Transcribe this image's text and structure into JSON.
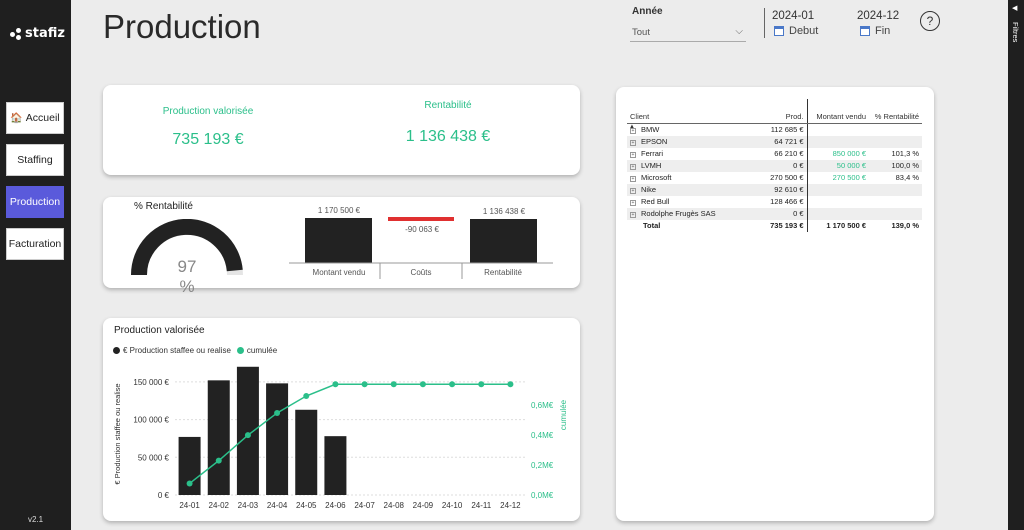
{
  "app": {
    "logo": "stafiz",
    "version": "v2.1",
    "filters_label": "Filtres"
  },
  "nav": [
    {
      "label": "Accueil",
      "icon": "home-icon",
      "active": false
    },
    {
      "label": "Staffing",
      "active": false
    },
    {
      "label": "Production",
      "active": true
    },
    {
      "label": "Facturation",
      "active": false
    }
  ],
  "header": {
    "title": "Production",
    "annee_label": "Année",
    "annee_value": "Tout",
    "start_period": "2024-01",
    "start_label": "Debut",
    "end_period": "2024-12",
    "end_label": "Fin",
    "help": "?"
  },
  "kpis": {
    "prod_label": "Production valorisée",
    "prod_value": "735 193 €",
    "rent_label": "Rentabilité",
    "rent_value": "1 136 438 €"
  },
  "rentabilite": {
    "title": "% Rentabilité",
    "gauge_value": "97 %",
    "gauge_fraction": 0.97,
    "waterfall": [
      {
        "label": "Montant vendu",
        "value_label": "1 170 500 €"
      },
      {
        "label": "Coûts",
        "value_label": "-90 063 €"
      },
      {
        "label": "Rentabilité",
        "value_label": "1 136 438 €"
      }
    ]
  },
  "table": {
    "headers": [
      "Client",
      "Prod.",
      "Montant vendu",
      "% Rentabilité"
    ],
    "rows": [
      {
        "client": "BMW",
        "prod": "112 685 €",
        "vendu": "",
        "rent": ""
      },
      {
        "client": "EPSON",
        "prod": "64 721 €",
        "vendu": "",
        "rent": ""
      },
      {
        "client": "Ferrari",
        "prod": "66 210 €",
        "vendu": "850 000 €",
        "rent": "101,3 %"
      },
      {
        "client": "LVMH",
        "prod": "0 €",
        "vendu": "50 000 €",
        "rent": "100,0 %"
      },
      {
        "client": "Microsoft",
        "prod": "270 500 €",
        "vendu": "270 500 €",
        "rent": "83,4 %"
      },
      {
        "client": "Nike",
        "prod": "92 610 €",
        "vendu": "",
        "rent": ""
      },
      {
        "client": "Red Bull",
        "prod": "128 466 €",
        "vendu": "",
        "rent": ""
      },
      {
        "client": "Rodolphe Frugès SAS",
        "prod": "0 €",
        "vendu": "",
        "rent": ""
      }
    ],
    "total": {
      "client": "Total",
      "prod": "735 193 €",
      "vendu": "1 170 500 €",
      "rent": "139,0 %"
    }
  },
  "chart_data": {
    "type": "bar",
    "title": "Production valorisée",
    "categories": [
      "24-01",
      "24-02",
      "24-03",
      "24-04",
      "24-05",
      "24-06",
      "24-07",
      "24-08",
      "24-09",
      "24-10",
      "24-11",
      "24-12"
    ],
    "series": [
      {
        "name": "€ Production staffee ou realise",
        "type": "bar",
        "color": "#222222",
        "values": [
          77000,
          152000,
          170000,
          148000,
          113000,
          78000,
          0,
          0,
          0,
          0,
          0,
          0
        ]
      },
      {
        "name": "cumulée",
        "type": "line",
        "color": "#2bbf8a",
        "values": [
          77000,
          229000,
          399000,
          547000,
          660000,
          738000,
          738000,
          738000,
          738000,
          738000,
          738000,
          738000
        ]
      }
    ],
    "ylabel": "€ Production staffee ou realise",
    "y2label": "cumulée",
    "ylim": [
      0,
      175000
    ],
    "y2lim": [
      0,
      880000
    ],
    "yticks": [
      "0 €",
      "50 000 €",
      "100 000 €",
      "150 000 €"
    ],
    "y2ticks": [
      "0,0M€",
      "0,2M€",
      "0,4M€",
      "0,6M€"
    ]
  },
  "colors": {
    "accent": "#2bbf8a",
    "nav_active": "#5a5adb",
    "negative": "#e03030"
  }
}
